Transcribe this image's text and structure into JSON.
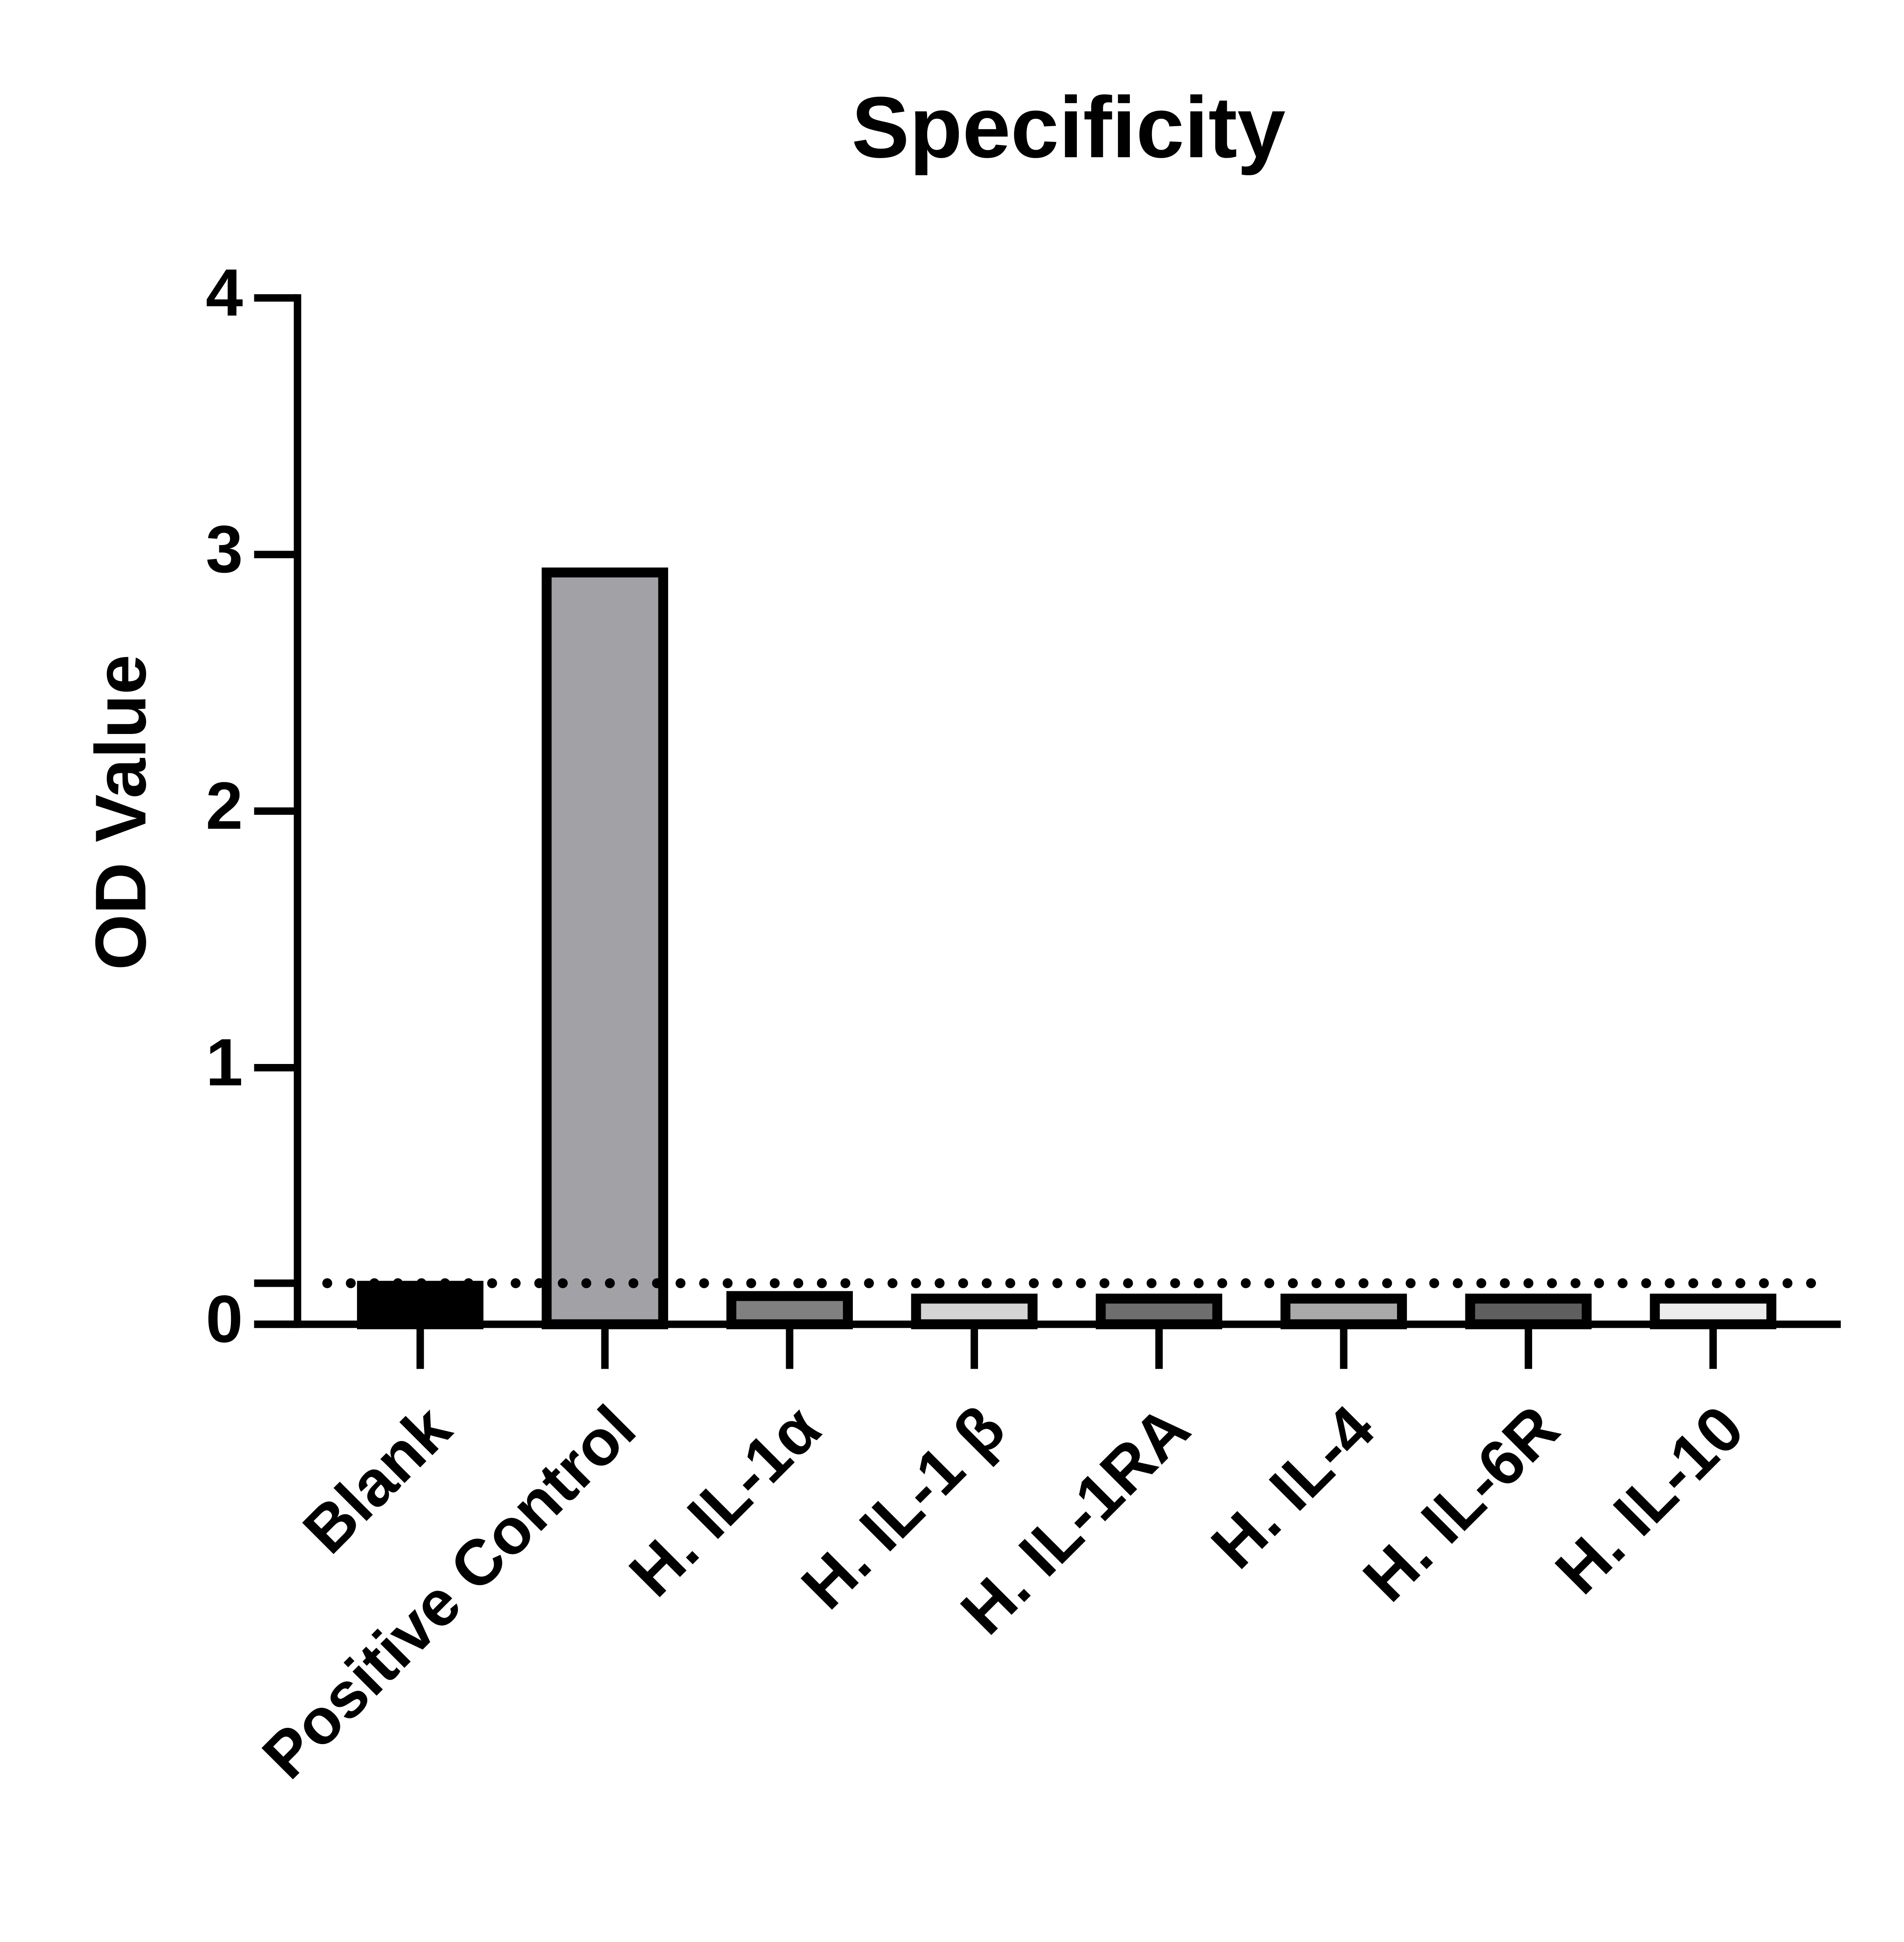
{
  "chart_data": {
    "type": "bar",
    "title": "Specificity",
    "y_label": "OD Value",
    "categories": [
      "Blank",
      "Positive Control",
      "H. IL-1α",
      "H. IL-1 β",
      "H. IL-1RA",
      "H. IL-4",
      "H. IL-6R",
      "H. IL-10"
    ],
    "values": [
      0.15,
      2.93,
      0.11,
      0.1,
      0.1,
      0.1,
      0.1,
      0.1
    ],
    "colors": [
      "#000000",
      "#a2a1a5",
      "#808080",
      "#d4d4d4",
      "#6e6e6e",
      "#a9a9a9",
      "#5f5f5f",
      "#ececec"
    ],
    "ylim": [
      0,
      4
    ],
    "yticks": [
      0,
      1,
      2,
      3,
      4
    ],
    "reference_line": 0.16
  }
}
